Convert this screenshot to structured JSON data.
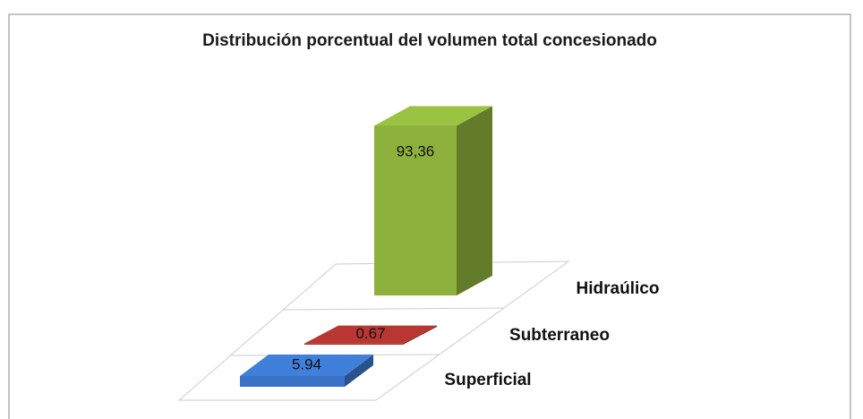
{
  "chart_data": {
    "type": "bar3d",
    "title": "Distribución porcentual del volumen total concesionado",
    "categories": [
      "Hidraúlico",
      "Subterraneo",
      "Superficial"
    ],
    "values": [
      93.36,
      0.67,
      5.94
    ],
    "value_labels": [
      "93,36",
      "0.67",
      "5.94"
    ],
    "colors": [
      "#8db13c",
      "#a8322d",
      "#3a73c6"
    ],
    "ylim": [
      0,
      100
    ]
  }
}
